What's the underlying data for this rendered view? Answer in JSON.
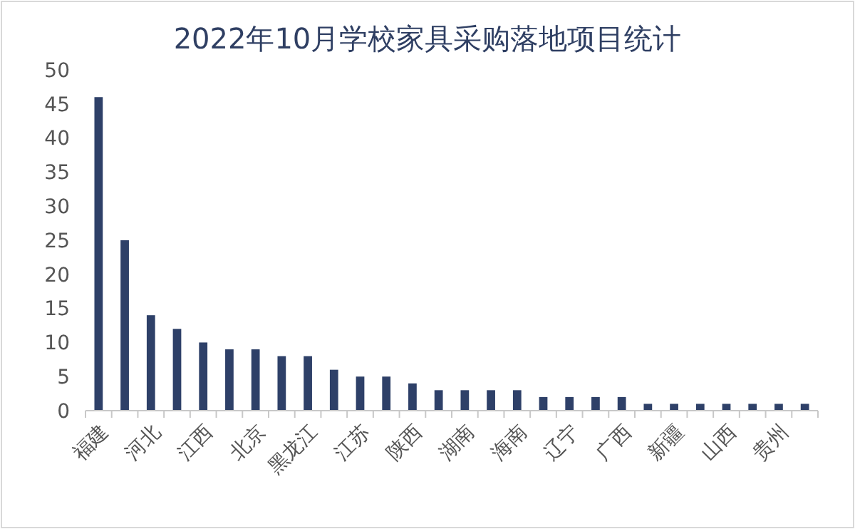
{
  "chart_data": {
    "type": "bar",
    "title": "2022年10月学校家具采购落地项目统计",
    "categories": [
      "福建",
      null,
      "河北",
      null,
      "江西",
      null,
      "北京",
      null,
      "黑龙江",
      null,
      "江苏",
      null,
      "陕西",
      null,
      "湖南",
      null,
      "海南",
      null,
      "辽宁",
      null,
      "广西",
      null,
      "新疆",
      null,
      "山西",
      null,
      "贵州",
      null
    ],
    "values": [
      46,
      25,
      14,
      12,
      10,
      9,
      9,
      8,
      8,
      6,
      5,
      5,
      4,
      3,
      3,
      3,
      3,
      2,
      2,
      2,
      2,
      1,
      1,
      1,
      1,
      1,
      1,
      1
    ],
    "color": "#2e4068",
    "ylim": [
      0,
      50
    ],
    "yticks": [
      0,
      5,
      10,
      15,
      20,
      25,
      30,
      35,
      40,
      45,
      50
    ],
    "grid": false
  }
}
